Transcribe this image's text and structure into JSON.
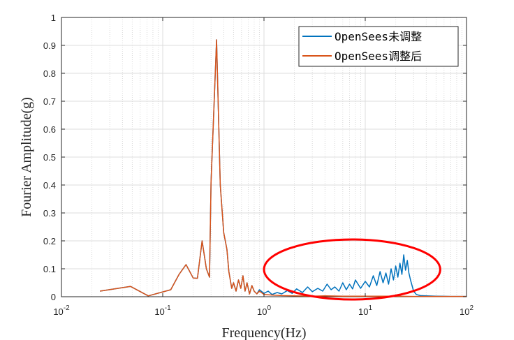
{
  "chart_data": {
    "type": "line",
    "xscale": "log",
    "xlim": [
      0.01,
      100
    ],
    "ylim": [
      0,
      1
    ],
    "xlabel": "Frequency(Hz)",
    "ylabel": "Fourier Amplitude(g)",
    "x_ticks": [
      {
        "base": "10",
        "exp": "-2",
        "value": 0.01
      },
      {
        "base": "10",
        "exp": "-1",
        "value": 0.1
      },
      {
        "base": "10",
        "exp": "0",
        "value": 1
      },
      {
        "base": "10",
        "exp": "1",
        "value": 10
      },
      {
        "base": "10",
        "exp": "2",
        "value": 100
      }
    ],
    "y_ticks": [
      "0",
      "0.1",
      "0.2",
      "0.3",
      "0.4",
      "0.5",
      "0.6",
      "0.7",
      "0.8",
      "0.9",
      "1"
    ],
    "grid": true,
    "legend_position": "top-right",
    "series": [
      {
        "name": "OpenSees未调整",
        "color": "#0072BD",
        "x": [
          0.024,
          0.048,
          0.072,
          0.12,
          0.145,
          0.17,
          0.2,
          0.22,
          0.245,
          0.27,
          0.29,
          0.3,
          0.34,
          0.37,
          0.4,
          0.43,
          0.45,
          0.48,
          0.5,
          0.53,
          0.56,
          0.59,
          0.62,
          0.65,
          0.68,
          0.72,
          0.76,
          0.8,
          0.85,
          0.9,
          1.0,
          1.1,
          1.2,
          1.35,
          1.5,
          1.7,
          1.9,
          2.1,
          2.4,
          2.7,
          3.0,
          3.4,
          3.8,
          4.2,
          4.6,
          5.0,
          5.5,
          6.0,
          6.5,
          7.0,
          7.5,
          8.0,
          9.0,
          10.0,
          11.0,
          12.0,
          13.0,
          14.0,
          15.0,
          16.0,
          17.0,
          18.0,
          19.0,
          20.0,
          21.0,
          22.0,
          23.0,
          24.0,
          25.0,
          26.0,
          27.0,
          28.0,
          29.0,
          30.0,
          32.0,
          35.0,
          40.0,
          50.0,
          70.0,
          100.0
        ],
        "values": [
          0.02,
          0.037,
          0.003,
          0.025,
          0.08,
          0.115,
          0.067,
          0.066,
          0.2,
          0.1,
          0.07,
          0.41,
          0.92,
          0.4,
          0.23,
          0.17,
          0.09,
          0.03,
          0.05,
          0.02,
          0.06,
          0.03,
          0.075,
          0.02,
          0.05,
          0.01,
          0.04,
          0.02,
          0.01,
          0.025,
          0.012,
          0.02,
          0.008,
          0.015,
          0.01,
          0.022,
          0.012,
          0.028,
          0.015,
          0.035,
          0.018,
          0.03,
          0.02,
          0.045,
          0.025,
          0.035,
          0.02,
          0.05,
          0.025,
          0.045,
          0.028,
          0.06,
          0.03,
          0.055,
          0.035,
          0.075,
          0.04,
          0.09,
          0.05,
          0.085,
          0.045,
          0.1,
          0.06,
          0.11,
          0.07,
          0.12,
          0.08,
          0.15,
          0.095,
          0.13,
          0.085,
          0.06,
          0.04,
          0.02,
          0.008,
          0.004,
          0.003,
          0.002,
          0.001,
          0.001
        ]
      },
      {
        "name": "OpenSees调整后",
        "color": "#D95319",
        "x": [
          0.024,
          0.048,
          0.072,
          0.12,
          0.145,
          0.17,
          0.2,
          0.22,
          0.245,
          0.27,
          0.29,
          0.3,
          0.34,
          0.37,
          0.4,
          0.43,
          0.45,
          0.48,
          0.5,
          0.53,
          0.56,
          0.59,
          0.62,
          0.65,
          0.68,
          0.72,
          0.76,
          0.8,
          0.85,
          0.9,
          1.0,
          1.2,
          1.5,
          2.0,
          3.0,
          4.0,
          6.0,
          8.0,
          10.0,
          15.0,
          20.0,
          30.0,
          50.0,
          100.0
        ],
        "values": [
          0.02,
          0.037,
          0.003,
          0.025,
          0.08,
          0.115,
          0.067,
          0.066,
          0.2,
          0.1,
          0.07,
          0.41,
          0.92,
          0.4,
          0.23,
          0.17,
          0.09,
          0.03,
          0.05,
          0.02,
          0.06,
          0.03,
          0.075,
          0.02,
          0.05,
          0.01,
          0.04,
          0.02,
          0.01,
          0.02,
          0.008,
          0.006,
          0.004,
          0.003,
          0.002,
          0.003,
          0.002,
          0.002,
          0.002,
          0.002,
          0.002,
          0.001,
          0.001,
          0.001
        ]
      }
    ],
    "annotations": [
      {
        "type": "ellipse",
        "color": "#FF0000",
        "x_range": [
          1.0,
          55.0
        ],
        "y_range": [
          -0.01,
          0.205
        ]
      }
    ]
  }
}
